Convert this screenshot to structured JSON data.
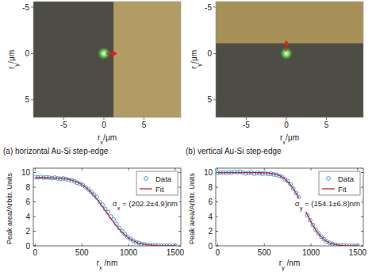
{
  "chart_data": [
    {
      "type": "image",
      "caption": "(a) horizontal Au-Si step-edge",
      "xlabel": "r",
      "xlabel_sub": "x",
      "xlabel_unit": "/μm",
      "ylabel": "r",
      "ylabel_sub": "y",
      "ylabel_unit": "/μm",
      "xlim": [
        -8.8,
        9.6
      ],
      "ylim": [
        -5.6,
        6.9
      ],
      "xticks": [
        -5,
        0,
        5
      ],
      "yticks": [
        -5,
        0,
        5
      ],
      "edge": {
        "axis": "x",
        "value": 1.2
      },
      "spot": {
        "x": 0,
        "y": 0
      }
    },
    {
      "type": "image",
      "caption": "(b) vertical Au-Si step-edge",
      "xlabel": "r",
      "xlabel_sub": "x",
      "xlabel_unit": "/μm",
      "ylabel": "r",
      "ylabel_sub": "y",
      "ylabel_unit": "/μm",
      "xlim": [
        -8.8,
        9.6
      ],
      "ylim": [
        -5.6,
        6.9
      ],
      "xticks": [
        -5,
        0,
        5
      ],
      "yticks": [
        -5,
        0,
        5
      ],
      "edge": {
        "axis": "y",
        "value": -1.1
      },
      "spot": {
        "x": 0,
        "y": 0
      }
    },
    {
      "type": "scatter",
      "xlabel": "r",
      "xlabel_sub": "x",
      "xlabel_unit": " /nm",
      "ylabel": "Peak area/Arbitr. Units",
      "xlim": [
        -20,
        1560
      ],
      "ylim": [
        0,
        10.6
      ],
      "xticks": [
        0,
        500,
        1000,
        1500
      ],
      "yticks": [
        0,
        2,
        4,
        6,
        8,
        10
      ],
      "legend": "upper right",
      "annotation": {
        "text": "σ",
        "sub": "x",
        "rest": " = (202.2±4.9)nm"
      },
      "x": [
        0,
        30,
        60,
        90,
        120,
        150,
        180,
        210,
        240,
        270,
        300,
        330,
        360,
        390,
        420,
        450,
        480,
        510,
        540,
        570,
        600,
        630,
        660,
        690,
        720,
        750,
        780,
        810,
        840,
        870,
        900,
        930,
        960,
        990,
        1020,
        1050,
        1080,
        1110,
        1140,
        1170,
        1200,
        1230,
        1260,
        1290,
        1320,
        1350,
        1380,
        1410,
        1440,
        1470,
        1500
      ],
      "series": [
        {
          "name": "Data",
          "type": "scatter",
          "marker": "circle",
          "color": "#2f8fd2",
          "values": [
            9.4,
            9.35,
            9.4,
            9.3,
            9.35,
            9.3,
            9.25,
            9.3,
            9.2,
            9.15,
            9.2,
            9.1,
            9.0,
            8.95,
            8.8,
            8.6,
            8.5,
            8.3,
            8.0,
            7.7,
            7.35,
            7.0,
            6.6,
            6.0,
            5.6,
            5.05,
            4.6,
            4.0,
            3.6,
            3.0,
            2.45,
            2.0,
            1.6,
            1.2,
            0.95,
            0.7,
            0.5,
            0.4,
            0.25,
            0.2,
            0.12,
            0.1,
            0.08,
            0.05,
            0.05,
            0.03,
            0.03,
            0.02,
            0.02,
            0.02,
            0.02
          ]
        },
        {
          "name": "Fit",
          "type": "line",
          "color": "#c0203a",
          "x": [
            0,
            50,
            100,
            150,
            200,
            250,
            300,
            350,
            400,
            450,
            500,
            550,
            600,
            650,
            700,
            750,
            800,
            850,
            900,
            950,
            1000,
            1050,
            1100,
            1150,
            1200,
            1250,
            1300,
            1350,
            1400,
            1450,
            1500
          ],
          "values": [
            9.3,
            9.3,
            9.3,
            9.29,
            9.27,
            9.24,
            9.2,
            9.1,
            8.95,
            8.7,
            8.38,
            7.9,
            7.3,
            6.55,
            5.75,
            4.85,
            3.9,
            3.05,
            2.28,
            1.62,
            1.09,
            0.7,
            0.43,
            0.25,
            0.14,
            0.08,
            0.04,
            0.02,
            0.01,
            0.0,
            0.0
          ]
        }
      ]
    },
    {
      "type": "scatter",
      "xlabel": "r",
      "xlabel_sub": "y",
      "xlabel_unit": " /nm",
      "ylabel": "Peak area/Arbitr. Units",
      "xlim": [
        -20,
        1560
      ],
      "ylim": [
        0,
        10.6
      ],
      "xticks": [
        0,
        500,
        1000,
        1500
      ],
      "yticks": [
        0,
        2,
        4,
        6,
        8,
        10
      ],
      "legend": "upper right",
      "annotation": {
        "text": "σ",
        "sub": "y",
        "rest": " = (154.1±6.8)nm"
      },
      "x": [
        0,
        30,
        60,
        90,
        120,
        150,
        180,
        210,
        240,
        270,
        300,
        330,
        360,
        390,
        420,
        450,
        480,
        510,
        540,
        570,
        600,
        630,
        660,
        690,
        720,
        750,
        780,
        810,
        840,
        870,
        900,
        930,
        960,
        990,
        1020,
        1050,
        1080,
        1110,
        1140,
        1170,
        1200,
        1230,
        1260,
        1290,
        1320,
        1350,
        1380,
        1410,
        1440,
        1470,
        1500
      ],
      "series": [
        {
          "name": "Data",
          "type": "scatter",
          "marker": "circle",
          "color": "#2f8fd2",
          "values": [
            9.95,
            10.0,
            10.0,
            9.95,
            10.05,
            10.0,
            10.1,
            10.05,
            10.1,
            10.0,
            9.9,
            9.95,
            10.0,
            9.85,
            9.95,
            9.9,
            9.85,
            9.9,
            9.8,
            9.85,
            9.75,
            9.7,
            9.55,
            9.4,
            9.1,
            8.85,
            8.4,
            7.8,
            7.2,
            6.6,
            5.8,
            5.0,
            4.2,
            3.5,
            2.85,
            2.2,
            1.7,
            1.25,
            0.9,
            0.6,
            0.4,
            0.25,
            0.15,
            0.1,
            0.05,
            0.03,
            0.02,
            0.02,
            0.02,
            0.02,
            0.02
          ]
        },
        {
          "name": "Fit",
          "type": "line",
          "color": "#c0203a",
          "x": [
            0,
            50,
            100,
            150,
            200,
            250,
            300,
            350,
            400,
            450,
            500,
            550,
            600,
            650,
            700,
            750,
            800,
            850,
            900,
            950,
            1000,
            1050,
            1100,
            1150,
            1200,
            1250,
            1300,
            1350,
            1400,
            1450,
            1500
          ],
          "values": [
            10.0,
            10.0,
            10.0,
            10.0,
            10.0,
            10.0,
            10.0,
            10.0,
            9.99,
            9.98,
            9.97,
            9.93,
            9.84,
            9.66,
            9.32,
            8.79,
            8.0,
            7.0,
            5.75,
            4.48,
            3.26,
            2.18,
            1.35,
            0.76,
            0.4,
            0.19,
            0.08,
            0.03,
            0.01,
            0.0,
            0.0
          ]
        }
      ]
    }
  ]
}
